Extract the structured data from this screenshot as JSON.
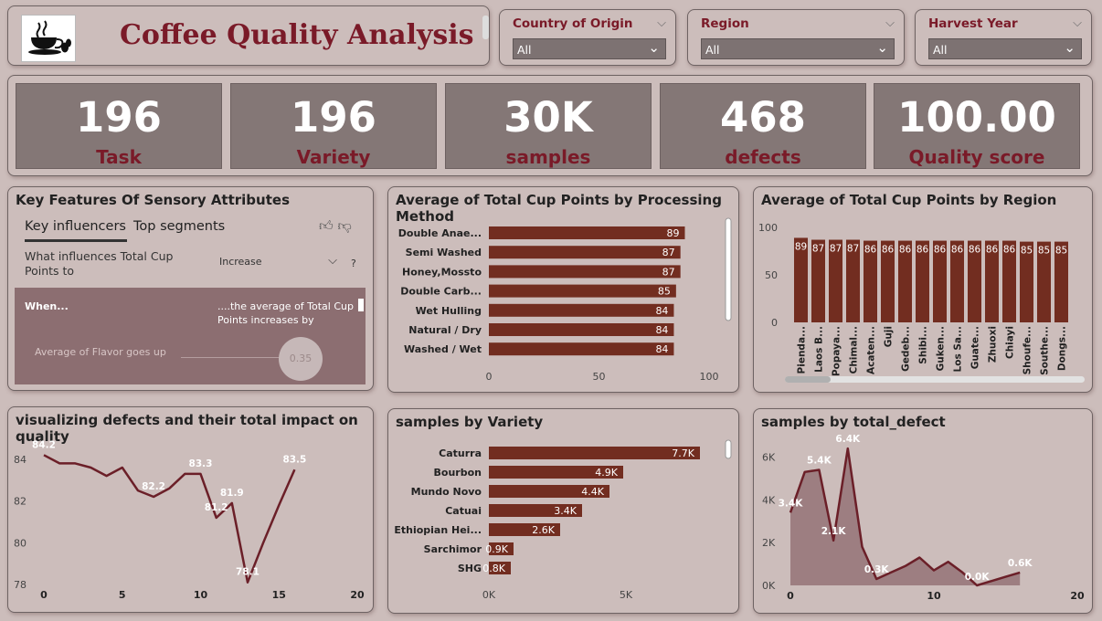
{
  "header": {
    "title": "Coffee Quality Analysis",
    "logo_icon": "coffee-cup-icon"
  },
  "filters": [
    {
      "label": "Country of Origin",
      "value": "All"
    },
    {
      "label": "Region",
      "value": "All"
    },
    {
      "label": "Harvest Year",
      "value": "All"
    }
  ],
  "kpis": [
    {
      "value": "196",
      "caption": "Task"
    },
    {
      "value": "196",
      "caption": "Variety"
    },
    {
      "value": "30K",
      "caption": "samples"
    },
    {
      "value": "468",
      "caption": "defects"
    },
    {
      "value": "100.00",
      "caption": "Quality score"
    }
  ],
  "key_influencers": {
    "title": "Key Features Of Sensory Attributes",
    "tabs": [
      "Key influencers",
      "Top segments"
    ],
    "question": "What influences Total Cup Points to",
    "dropdown_value": "Increase",
    "help": "?",
    "when_label": "When...",
    "avg_label": "....the average of Total Cup Points increases by",
    "factor": "Average of Flavor goes up",
    "bubble_value": "0.35"
  },
  "colors": {
    "bar": "#722d20",
    "accent": "#7a1a28",
    "line": "#6b1f28",
    "area": "#8e6a6e"
  },
  "chart_data": [
    {
      "type": "bar",
      "orientation": "horizontal",
      "title": "Average of Total Cup Points by Processing Method",
      "categories": [
        "Double Anae...",
        "Semi Washed",
        "Honey,Mossto",
        "Double Carb...",
        "Wet Hulling",
        "Natural / Dry",
        "Washed / Wet"
      ],
      "values": [
        89,
        87,
        87,
        85,
        84,
        84,
        84
      ],
      "value_labels": [
        "89",
        "87",
        "87",
        "85",
        "84",
        "84",
        "84"
      ],
      "xlim": [
        0,
        100
      ],
      "xticks": [
        "0",
        "50",
        "100"
      ]
    },
    {
      "type": "bar",
      "orientation": "vertical",
      "title": "Average of Total Cup Points by Region",
      "categories": [
        "Pienda...",
        "Laos B...",
        "Popaya...",
        "Chimal...",
        "Acaten...",
        "Guji",
        "Gedeb...",
        "Shibi...",
        "Guken...",
        "Los Sa...",
        "Guate...",
        "Zhuoxi",
        "Chiayi",
        "Shoufe...",
        "Southe...",
        "Dongs..."
      ],
      "values": [
        89,
        87,
        87,
        87,
        86,
        86,
        86,
        86,
        86,
        86,
        86,
        86,
        86,
        85,
        85,
        85
      ],
      "value_labels": [
        "89",
        "87",
        "87",
        "87",
        "86",
        "86",
        "86",
        "86",
        "86",
        "86",
        "86",
        "86",
        "86",
        "85",
        "85",
        "85"
      ],
      "ylim": [
        0,
        100
      ],
      "yticks": [
        "0",
        "50",
        "100"
      ]
    },
    {
      "type": "line",
      "title": "visualizing defects and their total impact on quality",
      "x": [
        0,
        1,
        2,
        3,
        4,
        5,
        6,
        7,
        8,
        9,
        10,
        11,
        12,
        13,
        14,
        15,
        16
      ],
      "y": [
        84.2,
        83.8,
        83.8,
        83.6,
        83.2,
        83.6,
        82.5,
        82.2,
        82.6,
        83.3,
        83.3,
        81.2,
        81.9,
        78.1,
        80.0,
        81.8,
        83.5
      ],
      "point_labels": [
        {
          "x": 0,
          "y": 84.2,
          "text": "84.2"
        },
        {
          "x": 7,
          "y": 82.2,
          "text": "82.2"
        },
        {
          "x": 10,
          "y": 83.3,
          "text": "83.3"
        },
        {
          "x": 11,
          "y": 81.2,
          "text": "81.2"
        },
        {
          "x": 12,
          "y": 81.9,
          "text": "81.9"
        },
        {
          "x": 13,
          "y": 78.1,
          "text": "78.1"
        },
        {
          "x": 16,
          "y": 83.5,
          "text": "83.5"
        }
      ],
      "xlim": [
        0,
        20
      ],
      "ylim": [
        78,
        85
      ],
      "xticks": [
        0,
        5,
        10,
        15,
        20
      ],
      "yticks": [
        78,
        80,
        82,
        84
      ]
    },
    {
      "type": "bar",
      "orientation": "horizontal",
      "title": "samples by Variety",
      "categories": [
        "Caturra",
        "Bourbon",
        "Mundo Novo",
        "Catuai",
        "Ethiopian Hei...",
        "Sarchimor",
        "SHG"
      ],
      "values": [
        7700,
        4900,
        4400,
        3400,
        2600,
        900,
        800
      ],
      "value_labels": [
        "7.7K",
        "4.9K",
        "4.4K",
        "3.4K",
        "2.6K",
        "0.9K",
        "0.8K"
      ],
      "xlim": [
        0,
        10000
      ],
      "xticks": [
        "0K",
        "5K"
      ]
    },
    {
      "type": "area",
      "title": "samples by total_defect",
      "x": [
        0,
        1,
        2,
        3,
        4,
        5,
        6,
        7,
        8,
        9,
        10,
        11,
        12,
        13,
        14,
        15,
        16
      ],
      "y": [
        3400,
        5300,
        5400,
        2100,
        6400,
        1800,
        300,
        600,
        900,
        1300,
        700,
        1100,
        600,
        0,
        200,
        400,
        600
      ],
      "point_labels": [
        {
          "x": 0,
          "y": 3400,
          "text": "3.4K"
        },
        {
          "x": 2,
          "y": 5400,
          "text": "5.4K"
        },
        {
          "x": 3,
          "y": 2100,
          "text": "2.1K"
        },
        {
          "x": 4,
          "y": 6400,
          "text": "6.4K"
        },
        {
          "x": 6,
          "y": 300,
          "text": "0.3K"
        },
        {
          "x": 13,
          "y": 0,
          "text": "0.0K"
        },
        {
          "x": 16,
          "y": 600,
          "text": "0.6K"
        }
      ],
      "xlim": [
        0,
        20
      ],
      "ylim": [
        0,
        7000
      ],
      "xticks": [
        "0",
        "10",
        "20"
      ],
      "yticks": [
        "0K",
        "2K",
        "4K",
        "6K"
      ],
      "ytick_values": [
        0,
        2000,
        4000,
        6000
      ]
    }
  ]
}
